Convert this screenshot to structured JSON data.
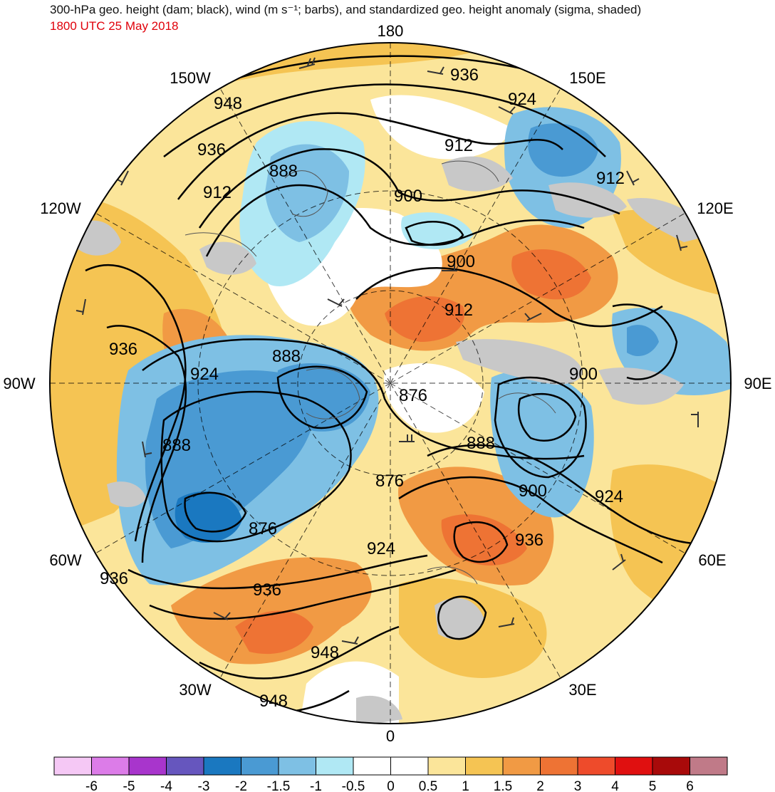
{
  "title": "300-hPa geo. height (dam; black), wind (m s⁻¹; barbs), and standardized geo. height anomaly (sigma, shaded)",
  "valid_time": "1800 UTC 25 May 2018",
  "longitude_labels": [
    {
      "label": "180"
    },
    {
      "label": "150E"
    },
    {
      "label": "120E"
    },
    {
      "label": "90E"
    },
    {
      "label": "60E"
    },
    {
      "label": "30E"
    },
    {
      "label": "0"
    },
    {
      "label": "30W"
    },
    {
      "label": "60W"
    },
    {
      "label": "90W"
    },
    {
      "label": "120W"
    },
    {
      "label": "150W"
    }
  ],
  "contour_labels": [
    "936",
    "924",
    "948",
    "936",
    "912",
    "888",
    "912",
    "900",
    "912",
    "900",
    "912",
    "936",
    "924",
    "888",
    "900",
    "876",
    "888",
    "876",
    "900",
    "924",
    "888",
    "876",
    "924",
    "936",
    "936",
    "936",
    "948"
  ],
  "colorbar": {
    "ticks": [
      "-6",
      "-5",
      "-4",
      "-3",
      "-2",
      "-1.5",
      "-1",
      "-0.5",
      "0",
      "0.5",
      "1",
      "1.5",
      "2",
      "3",
      "4",
      "5",
      "6"
    ],
    "colors": [
      "#f5c8f5",
      "#dc7ce8",
      "#a835cc",
      "#6656be",
      "#1a78c0",
      "#4a9ad3",
      "#7ec0e4",
      "#b0e8f4",
      "#ffffff",
      "#ffffff",
      "#fbe59a",
      "#f5c453",
      "#f19a44",
      "#ee7334",
      "#ee4b2b",
      "#e01010",
      "#a80a0a",
      "#c07a88"
    ]
  },
  "colors": {
    "land_gray": "#c8c8c8",
    "date_red": "#e0000a"
  }
}
